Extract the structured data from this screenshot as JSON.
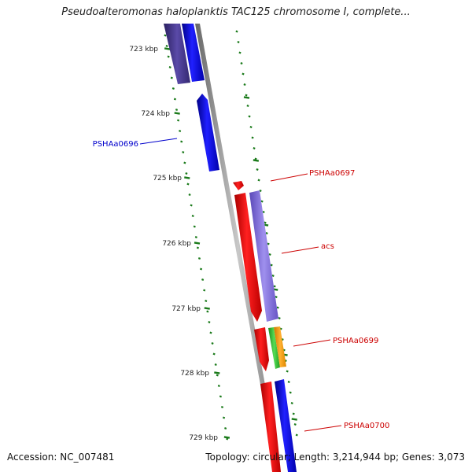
{
  "title": "Pseudoalteromonas haloplanktis TAC125 chromosome I, complete...",
  "footer": {
    "accession": "Accession: NC_007481",
    "summary": "Topology: circular; Length: 3,214,944 bp; Genes: 3,073"
  },
  "ticks": [
    {
      "label": "723 kbp"
    },
    {
      "label": "724 kbp"
    },
    {
      "label": "725 kbp"
    },
    {
      "label": "726 kbp"
    },
    {
      "label": "727 kbp"
    },
    {
      "label": "728 kbp"
    },
    {
      "label": "729 kbp"
    }
  ],
  "gene_labels": [
    {
      "name": "PSHAa0696",
      "color": "#0000cc"
    },
    {
      "name": "PSHAa0697",
      "color": "#cc0000"
    },
    {
      "name": "acs",
      "color": "#cc0000"
    },
    {
      "name": "PSHAa0699",
      "color": "#cc0000"
    },
    {
      "name": "PSHAa0700",
      "color": "#cc0000"
    }
  ],
  "colors": {
    "tick": "#1a7a1a",
    "backbone": "#8c8c8c",
    "forward_gene": "#0000ee",
    "reverse_gene": "#ee0000",
    "dark_blue_gene": "#4a3d8f",
    "light_purple_gene": "#7b68d8",
    "green_gene": "#33bb33",
    "orange_gene": "#ff9900"
  }
}
